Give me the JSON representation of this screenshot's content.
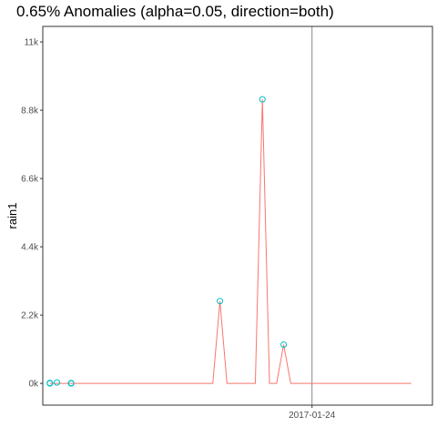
{
  "chart_data": {
    "type": "line",
    "title": "0.65% Anomalies (alpha=0.05, direction=both)",
    "xlabel": "",
    "ylabel": "rain1",
    "ylim": [
      -700,
      11500
    ],
    "yticks": [
      {
        "value": 0,
        "label": "0k"
      },
      {
        "value": 2200,
        "label": "2.2k"
      },
      {
        "value": 4400,
        "label": "4.4k"
      },
      {
        "value": 6600,
        "label": "6.6k"
      },
      {
        "value": 8800,
        "label": "8.8k"
      },
      {
        "value": 11000,
        "label": "11k"
      }
    ],
    "xlim": [
      "2016-12-17",
      "2017-02-10"
    ],
    "xticks": [
      {
        "value": "2017-01-24",
        "label": "2017-01-24"
      }
    ],
    "reference_line": {
      "x": "2017-01-24",
      "color": "#8a8a8a"
    },
    "series": [
      {
        "role": "observed",
        "color": "#f8766d",
        "x": [
          "2016-12-18",
          "2016-12-19",
          "2016-12-21",
          "2016-12-22",
          "2016-12-23",
          "2016-12-24",
          "2016-12-25",
          "2016-12-26",
          "2016-12-27",
          "2016-12-28",
          "2016-12-29",
          "2016-12-30",
          "2016-12-31",
          "2017-01-01",
          "2017-01-02",
          "2017-01-03",
          "2017-01-04",
          "2017-01-05",
          "2017-01-06",
          "2017-01-07",
          "2017-01-08",
          "2017-01-09",
          "2017-01-10",
          "2017-01-11",
          "2017-01-12",
          "2017-01-13",
          "2017-01-14",
          "2017-01-15",
          "2017-01-16",
          "2017-01-17",
          "2017-01-18",
          "2017-01-19",
          "2017-01-20",
          "2017-01-21",
          "2017-01-22",
          "2017-01-23",
          "2017-01-24",
          "2017-01-25",
          "2017-01-26",
          "2017-01-27",
          "2017-01-28",
          "2017-01-29",
          "2017-01-30",
          "2017-01-31",
          "2017-02-01",
          "2017-02-02",
          "2017-02-03",
          "2017-02-04",
          "2017-02-05",
          "2017-02-06",
          "2017-02-07"
        ],
        "y": [
          0,
          0,
          0,
          0,
          0,
          0,
          0,
          0,
          0,
          0,
          0,
          0,
          0,
          0,
          0,
          0,
          0,
          0,
          0,
          0,
          0,
          0,
          0,
          2650,
          0,
          0,
          0,
          0,
          0,
          9150,
          0,
          0,
          1250,
          0,
          0,
          0,
          0,
          0,
          0,
          0,
          0,
          0,
          0,
          0,
          0,
          0,
          0,
          0,
          0,
          0,
          0
        ]
      },
      {
        "role": "anomalies",
        "color": "#00bfc4",
        "x": [
          "2016-12-18",
          "2016-12-18",
          "2016-12-19",
          "2016-12-21",
          "2016-12-21",
          "2016-12-21",
          "2017-01-11",
          "2017-01-17",
          "2017-01-20"
        ],
        "y": [
          0,
          15,
          30,
          5,
          10,
          0,
          2650,
          9150,
          1250
        ]
      }
    ]
  }
}
